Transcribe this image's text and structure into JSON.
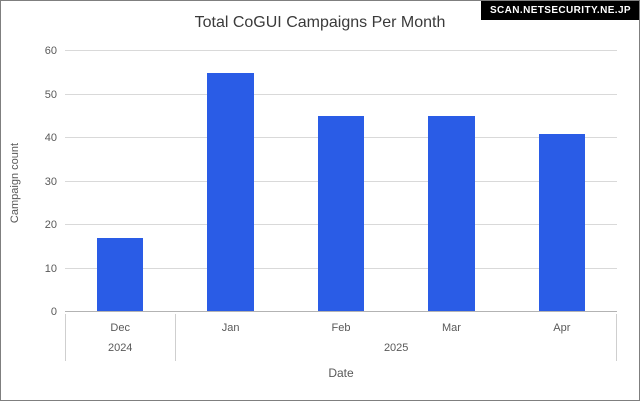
{
  "badge": {
    "label": "SCAN.NETSECURITY.NE.JP"
  },
  "chart_data": {
    "type": "bar",
    "title": "Total CoGUI Campaigns Per Month",
    "categories": [
      "Dec",
      "Jan",
      "Feb",
      "Mar",
      "Apr"
    ],
    "values": [
      17,
      55,
      45,
      45,
      41
    ],
    "year_groups": [
      {
        "label": "2024",
        "span": 1
      },
      {
        "label": "2025",
        "span": 4
      }
    ],
    "xlabel": "Date",
    "ylabel": "Campaign count",
    "ylim": [
      0,
      60
    ],
    "ytick_step": 10,
    "bar_color": "#2a5ce6",
    "grid": true,
    "legend": "none"
  }
}
